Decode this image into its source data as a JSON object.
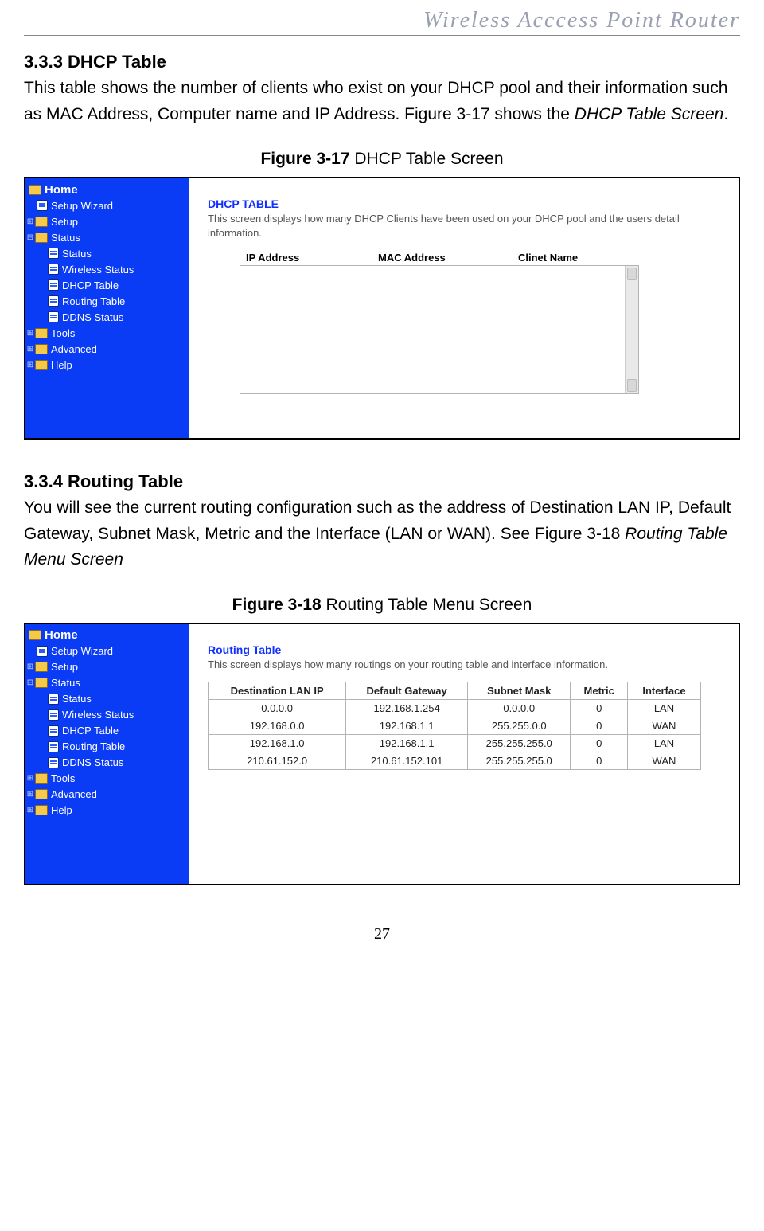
{
  "header": "Wireless  Acccess  Point  Router",
  "page_number": "27",
  "section_333": {
    "heading": "3.3.3 DHCP Table",
    "body_plain": "This table shows the number of clients who exist on your DHCP pool and their information such as MAC Address, Computer name and IP Address. Figure 3-17 shows the ",
    "body_italic": "DHCP Table Screen",
    "body_after": "."
  },
  "fig317": {
    "label_bold": "Figure 3-17",
    "label_rest": " DHCP Table Screen"
  },
  "section_334": {
    "heading": "3.3.4 Routing Table",
    "body_plain": "You will see the current routing configuration such as the address of Destination LAN IP, Default Gateway, Subnet Mask, Metric and the Interface (LAN or WAN). See Figure 3-18 ",
    "body_italic": "Routing Table Menu Screen"
  },
  "fig318": {
    "label_bold": "Figure 3-18",
    "label_rest": " Routing Table Menu Screen"
  },
  "sidebar": {
    "home": "Home",
    "setup_wizard": "Setup Wizard",
    "setup": "Setup",
    "status": "Status",
    "status_sub": "Status",
    "wireless_status": "Wireless Status",
    "dhcp_table": "DHCP Table",
    "routing_table": "Routing Table",
    "ddns_status": "DDNS Status",
    "tools": "Tools",
    "advanced": "Advanced",
    "help": "Help"
  },
  "dhcp_panel": {
    "title": "DHCP TABLE",
    "desc": "This screen displays how many DHCP Clients have been used on your DHCP pool and the users detail information.",
    "col_ip": "IP Address",
    "col_mac": "MAC Address",
    "col_client": "Clinet Name"
  },
  "routing_panel": {
    "title": "Routing Table",
    "desc": "This screen displays how many routings on your routing table and interface information.",
    "columns": [
      "Destination LAN IP",
      "Default Gateway",
      "Subnet Mask",
      "Metric",
      "Interface"
    ],
    "rows": [
      [
        "0.0.0.0",
        "192.168.1.254",
        "0.0.0.0",
        "0",
        "LAN"
      ],
      [
        "192.168.0.0",
        "192.168.1.1",
        "255.255.0.0",
        "0",
        "WAN"
      ],
      [
        "192.168.1.0",
        "192.168.1.1",
        "255.255.255.0",
        "0",
        "LAN"
      ],
      [
        "210.61.152.0",
        "210.61.152.101",
        "255.255.255.0",
        "0",
        "WAN"
      ]
    ]
  }
}
